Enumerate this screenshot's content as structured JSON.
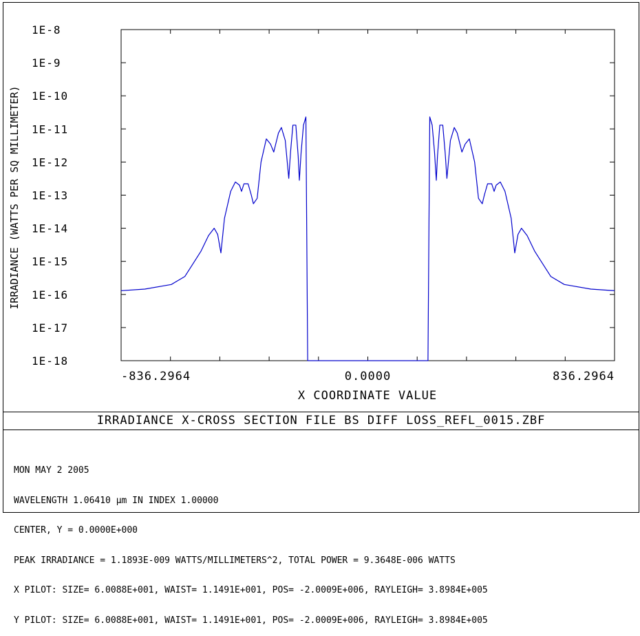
{
  "chart_data": {
    "type": "line",
    "scale_y": "log",
    "xlabel": "X COORDINATE VALUE",
    "ylabel": "IRRADIANCE (WATTS PER SQ MILLIMETER)",
    "x_ticks": [
      "-836.2964",
      "0.0000",
      "836.2964"
    ],
    "x_tick_values": [
      -836.2964,
      0,
      836.2964
    ],
    "y_ticks": [
      "1E-8",
      "1E-9",
      "1E-10",
      "1E-11",
      "1E-12",
      "1E-13",
      "1E-14",
      "1E-15",
      "1E-16",
      "1E-17",
      "1E-18"
    ],
    "xlim": [
      -836.2964,
      836.2964
    ],
    "ylim": [
      1e-18,
      1e-08
    ],
    "grid": false,
    "series": [
      {
        "color": "#0000cc",
        "points": [
          [
            -836.3,
            1.3e-16
          ],
          [
            -756.0,
            1.45e-16
          ],
          [
            -666.0,
            2e-16
          ],
          [
            -620.0,
            3.5e-16
          ],
          [
            -566.0,
            2e-15
          ],
          [
            -540.0,
            6e-15
          ],
          [
            -521.0,
            1e-14
          ],
          [
            -509.0,
            6.5e-15
          ],
          [
            -498.0,
            1.8e-15
          ],
          [
            -486.0,
            2e-14
          ],
          [
            -465.0,
            1.3e-13
          ],
          [
            -449.0,
            2.5e-13
          ],
          [
            -435.0,
            2e-13
          ],
          [
            -428.0,
            1.3e-13
          ],
          [
            -420.0,
            2.2e-13
          ],
          [
            -406.0,
            2.2e-13
          ],
          [
            -395.0,
            1e-13
          ],
          [
            -388.0,
            5.5e-14
          ],
          [
            -375.0,
            8e-14
          ],
          [
            -362.0,
            1e-12
          ],
          [
            -344.0,
            5e-12
          ],
          [
            -330.0,
            3.5e-12
          ],
          [
            -319.0,
            2e-12
          ],
          [
            -303.0,
            7.5e-12
          ],
          [
            -293.0,
            1.1e-11
          ],
          [
            -280.0,
            4.5e-12
          ],
          [
            -268.0,
            3.2e-13
          ],
          [
            -262.0,
            2e-12
          ],
          [
            -254.0,
            1.3e-11
          ],
          [
            -244.0,
            1.3e-11
          ],
          [
            -236.0,
            1.5e-12
          ],
          [
            -232.0,
            2.8e-13
          ],
          [
            -226.0,
            2e-12
          ],
          [
            -218.0,
            1.3e-11
          ],
          [
            -210.0,
            2.3e-11
          ],
          [
            -204.0,
            1e-18
          ],
          [
            -168.0,
            1e-18
          ],
          [
            168.0,
            1e-18
          ],
          [
            204.0,
            1e-18
          ],
          [
            210.0,
            2.3e-11
          ],
          [
            218.0,
            1.3e-11
          ],
          [
            226.0,
            2e-12
          ],
          [
            232.0,
            2.8e-13
          ],
          [
            236.0,
            1.5e-12
          ],
          [
            244.0,
            1.3e-11
          ],
          [
            254.0,
            1.3e-11
          ],
          [
            262.0,
            2e-12
          ],
          [
            268.0,
            3.2e-13
          ],
          [
            280.0,
            4.5e-12
          ],
          [
            293.0,
            1.1e-11
          ],
          [
            303.0,
            7.5e-12
          ],
          [
            319.0,
            2e-12
          ],
          [
            330.0,
            3.5e-12
          ],
          [
            344.0,
            5e-12
          ],
          [
            362.0,
            1e-12
          ],
          [
            375.0,
            8e-14
          ],
          [
            388.0,
            5.5e-14
          ],
          [
            395.0,
            1e-13
          ],
          [
            406.0,
            2.2e-13
          ],
          [
            420.0,
            2.2e-13
          ],
          [
            428.0,
            1.3e-13
          ],
          [
            435.0,
            2e-13
          ],
          [
            449.0,
            2.5e-13
          ],
          [
            465.0,
            1.3e-13
          ],
          [
            486.0,
            2e-14
          ],
          [
            498.0,
            1.8e-15
          ],
          [
            509.0,
            6.5e-15
          ],
          [
            521.0,
            1e-14
          ],
          [
            540.0,
            6e-15
          ],
          [
            566.0,
            2e-15
          ],
          [
            620.0,
            3.5e-16
          ],
          [
            666.0,
            2e-16
          ],
          [
            756.0,
            1.45e-16
          ],
          [
            836.3,
            1.3e-16
          ]
        ]
      }
    ]
  },
  "caption": "IRRADIANCE X-CROSS SECTION FILE BS DIFF LOSS_REFL_0015.ZBF",
  "info_lines": [
    "MON MAY 2 2005",
    "WAVELENGTH 1.06410 µm IN INDEX 1.00000",
    "CENTER, Y = 0.0000E+000",
    "PEAK IRRADIANCE = 1.1893E-009 WATTS/MILLIMETERS^2, TOTAL POWER = 9.3648E-006 WATTS",
    "X PILOT: SIZE= 6.0088E+001, WAIST= 1.1491E+001, POS= -2.0009E+006, RAYLEIGH= 3.8984E+005",
    "Y PILOT: SIZE= 6.0088E+001, WAIST= 1.1491E+001, POS= -2.0009E+006, RAYLEIGH= 3.8984E+005"
  ]
}
